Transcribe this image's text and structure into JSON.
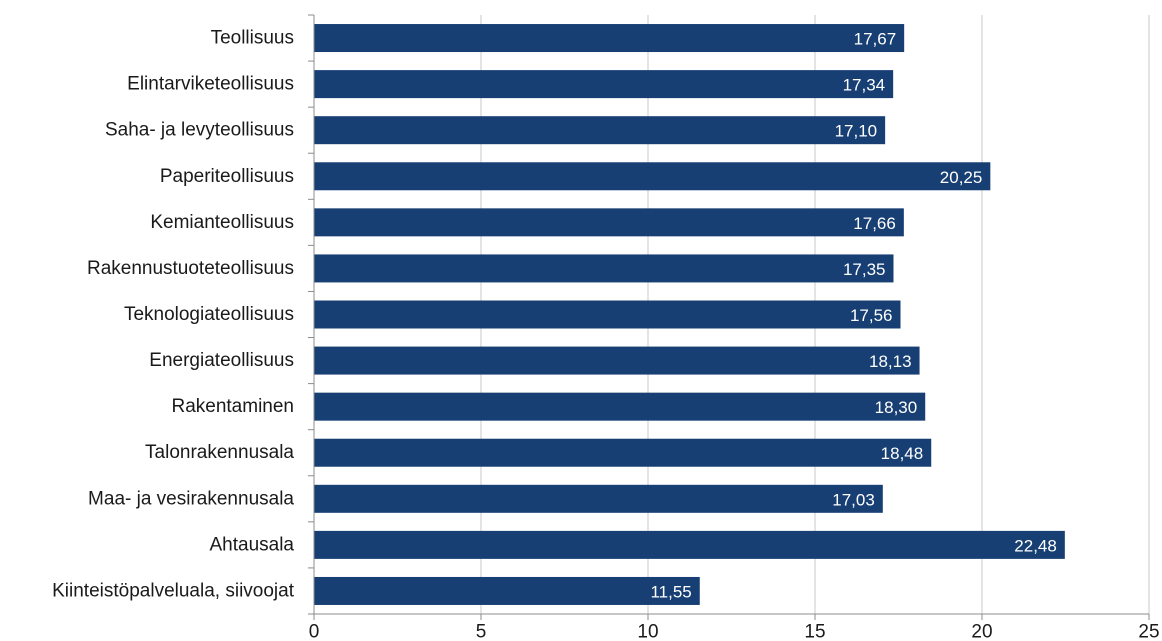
{
  "chart_data": {
    "type": "bar",
    "orientation": "horizontal",
    "title": "",
    "xlabel": "",
    "ylabel": "",
    "categories": [
      "Teollisuus",
      "Elintarviketeollisuus",
      "Saha- ja levyteollisuus",
      "Paperiteollisuus",
      "Kemianteollisuus",
      "Rakennustuoteteollisuus",
      "Teknologiateollisuus",
      "Energiateollisuus",
      "Rakentaminen",
      "Talonrakennusala",
      "Maa- ja vesirakennusala",
      "Ahtausala",
      "Kiinteistöpalveluala, siivoojat"
    ],
    "values": [
      17.67,
      17.34,
      17.1,
      20.25,
      17.66,
      17.35,
      17.56,
      18.13,
      18.3,
      18.48,
      17.03,
      22.48,
      11.55
    ],
    "value_labels": [
      "17,67",
      "17,34",
      "17,10",
      "20,25",
      "17,66",
      "17,35",
      "17,56",
      "18,13",
      "18,30",
      "18,48",
      "17,03",
      "22,48",
      "11,55"
    ],
    "xlim": [
      0,
      25
    ],
    "x_ticks": [
      0,
      5,
      10,
      15,
      20,
      25
    ],
    "x_tick_labels": [
      "0",
      "5",
      "10",
      "15",
      "20",
      "25"
    ],
    "grid": "vertical",
    "legend": "none",
    "colors": {
      "bar": "#173f74",
      "grid": "#c8c8c8",
      "axis": "#8c8c8c",
      "data_label": "#ffffff",
      "text": "#1a1a1a"
    }
  }
}
